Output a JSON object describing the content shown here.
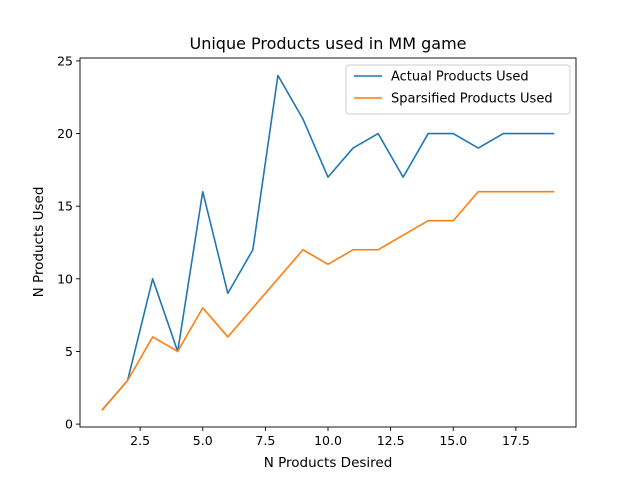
{
  "chart_data": {
    "type": "line",
    "title": "Unique Products used in MM game",
    "xlabel": "N Products Desired",
    "ylabel": "N Products Used",
    "xlim": [
      0.1,
      19.9
    ],
    "ylim": [
      -0.2,
      25.2
    ],
    "xticks": [
      2.5,
      5.0,
      7.5,
      10.0,
      12.5,
      15.0,
      17.5
    ],
    "xtick_labels": [
      "2.5",
      "5.0",
      "7.5",
      "10.0",
      "12.5",
      "15.0",
      "17.5"
    ],
    "yticks": [
      0,
      5,
      10,
      15,
      20,
      25
    ],
    "ytick_labels": [
      "0",
      "5",
      "10",
      "15",
      "20",
      "25"
    ],
    "grid": false,
    "legend_position": "top-right",
    "x": [
      1,
      2,
      3,
      4,
      5,
      6,
      7,
      8,
      9,
      10,
      11,
      12,
      13,
      14,
      15,
      16,
      17,
      18,
      19
    ],
    "series": [
      {
        "name": "Actual Products Used",
        "color": "#1f77b4",
        "values": [
          1,
          3,
          10,
          5,
          16,
          9,
          12,
          24,
          21,
          17,
          19,
          20,
          17,
          20,
          20,
          19,
          20,
          20,
          20
        ]
      },
      {
        "name": "Sparsified Products Used",
        "color": "#ff7f0e",
        "values": [
          1,
          3,
          6,
          5,
          8,
          6,
          8,
          10,
          12,
          11,
          12,
          12,
          13,
          14,
          14,
          16,
          16,
          16,
          16
        ]
      }
    ]
  }
}
